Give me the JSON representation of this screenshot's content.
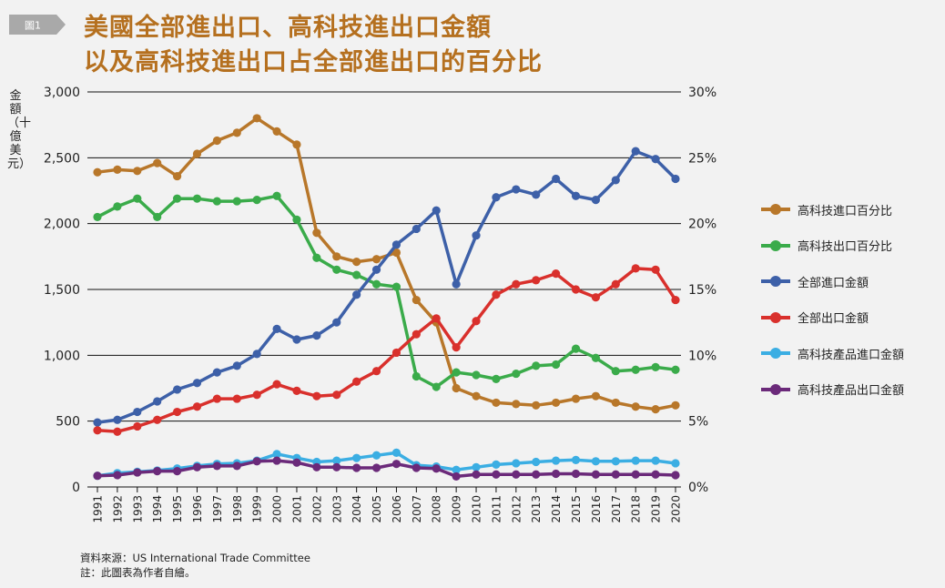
{
  "figure_badge": "圖1",
  "title_line1": "美國全部進出口、高科技進出口金額",
  "title_line2": "以及高科技進出口占全部進出口的百分比",
  "footer": {
    "source": "資料來源：US International Trade Committee",
    "note": "註：此圖表為作者自繪。"
  },
  "chart_data": {
    "type": "line",
    "ylabel_left": "金額（十億美元）",
    "ylim_left": [
      0,
      3000
    ],
    "yticks_left": [
      "0",
      "500",
      "1,000",
      "1,500",
      "2,000",
      "2,500",
      "3,000"
    ],
    "ylim_right": [
      0,
      30
    ],
    "yticks_right": [
      "0%",
      "5%",
      "10%",
      "15%",
      "20%",
      "25%",
      "30%"
    ],
    "grid": "horizontal",
    "legend_position": "right",
    "x": [
      "1991",
      "1992",
      "1993",
      "1994",
      "1995",
      "1996",
      "1997",
      "1998",
      "1999",
      "2000",
      "2001",
      "2002",
      "2003",
      "2004",
      "2005",
      "2006",
      "2007",
      "2008",
      "2009",
      "2010",
      "2011",
      "2012",
      "2013",
      "2014",
      "2015",
      "2016",
      "2017",
      "2018",
      "2019",
      "2020"
    ],
    "series": [
      {
        "name": "高科技進口百分比",
        "axis": "right",
        "color": "#b8772a",
        "values": [
          23.9,
          24.1,
          24.0,
          24.6,
          23.6,
          25.3,
          26.3,
          26.9,
          28.0,
          27.0,
          26.0,
          19.3,
          17.5,
          17.1,
          17.3,
          17.8,
          14.2,
          12.5,
          7.5,
          6.9,
          6.4,
          6.3,
          6.2,
          6.4,
          6.7,
          6.9,
          6.4,
          6.1,
          5.9,
          6.2
        ]
      },
      {
        "name": "高科技出口百分比",
        "axis": "right",
        "color": "#3aab4a",
        "values": [
          20.5,
          21.3,
          21.9,
          20.5,
          21.9,
          21.9,
          21.7,
          21.7,
          21.8,
          22.1,
          20.3,
          17.4,
          16.5,
          16.1,
          15.4,
          15.2,
          8.4,
          7.6,
          8.7,
          8.5,
          8.2,
          8.6,
          9.2,
          9.3,
          10.5,
          9.8,
          8.8,
          8.9,
          9.1,
          8.9
        ]
      },
      {
        "name": "全部進口金額",
        "axis": "left",
        "color": "#3d60a8",
        "values": [
          490,
          510,
          570,
          650,
          740,
          790,
          870,
          920,
          1010,
          1200,
          1120,
          1150,
          1250,
          1460,
          1650,
          1840,
          1960,
          2100,
          1540,
          1910,
          2200,
          2260,
          2220,
          2340,
          2210,
          2180,
          2330,
          2550,
          2490,
          2340
        ]
      },
      {
        "name": "全部出口金額",
        "axis": "left",
        "color": "#d9302c",
        "values": [
          430,
          420,
          460,
          510,
          570,
          610,
          670,
          670,
          700,
          780,
          730,
          690,
          700,
          800,
          880,
          1020,
          1160,
          1280,
          1060,
          1260,
          1460,
          1540,
          1570,
          1620,
          1500,
          1440,
          1540,
          1660,
          1650,
          1420
        ]
      },
      {
        "name": "高科技產品進口金額",
        "axis": "left",
        "color": "#3baee3",
        "values": [
          85,
          105,
          115,
          125,
          140,
          160,
          175,
          180,
          200,
          250,
          220,
          190,
          200,
          220,
          240,
          260,
          165,
          155,
          130,
          150,
          170,
          180,
          190,
          200,
          205,
          195,
          195,
          200,
          200,
          180
        ]
      },
      {
        "name": "高科技產品出口金額",
        "axis": "left",
        "color": "#6b2a7a",
        "values": [
          85,
          90,
          110,
          120,
          120,
          150,
          160,
          160,
          195,
          200,
          185,
          150,
          150,
          145,
          145,
          175,
          145,
          140,
          80,
          95,
          95,
          95,
          95,
          100,
          100,
          95,
          95,
          95,
          95,
          90
        ]
      }
    ]
  }
}
